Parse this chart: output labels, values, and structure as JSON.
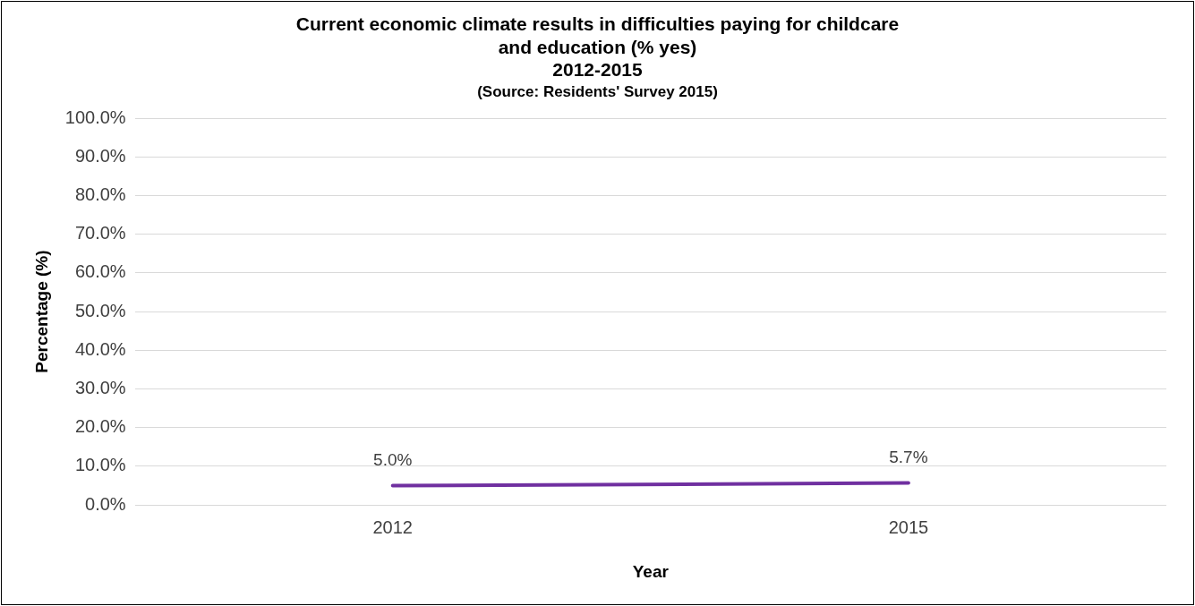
{
  "chart_data": {
    "type": "line",
    "title": "Current economic climate results in difficulties paying for childcare\nand education (% yes)\n2012-2015",
    "subtitle": "(Source: Residents' Survey 2015)",
    "xlabel": "Year",
    "ylabel": "Percentage (%)",
    "categories": [
      "2012",
      "2015"
    ],
    "series": [
      {
        "color": "#7030a0",
        "values": [
          5.0,
          5.7
        ],
        "value_labels": [
          "5.0%",
          "5.7%"
        ]
      }
    ],
    "ylim": [
      0,
      100
    ],
    "yticks": [
      {
        "value": 0,
        "label": "0.0%"
      },
      {
        "value": 10,
        "label": "10.0%"
      },
      {
        "value": 20,
        "label": "20.0%"
      },
      {
        "value": 30,
        "label": "30.0%"
      },
      {
        "value": 40,
        "label": "40.0%"
      },
      {
        "value": 50,
        "label": "50.0%"
      },
      {
        "value": 60,
        "label": "60.0%"
      },
      {
        "value": 70,
        "label": "70.0%"
      },
      {
        "value": 80,
        "label": "80.0%"
      },
      {
        "value": 90,
        "label": "90.0%"
      },
      {
        "value": 100,
        "label": "100.0%"
      }
    ],
    "grid": "y",
    "legend": false,
    "marker": "none",
    "line_style": "solid"
  }
}
